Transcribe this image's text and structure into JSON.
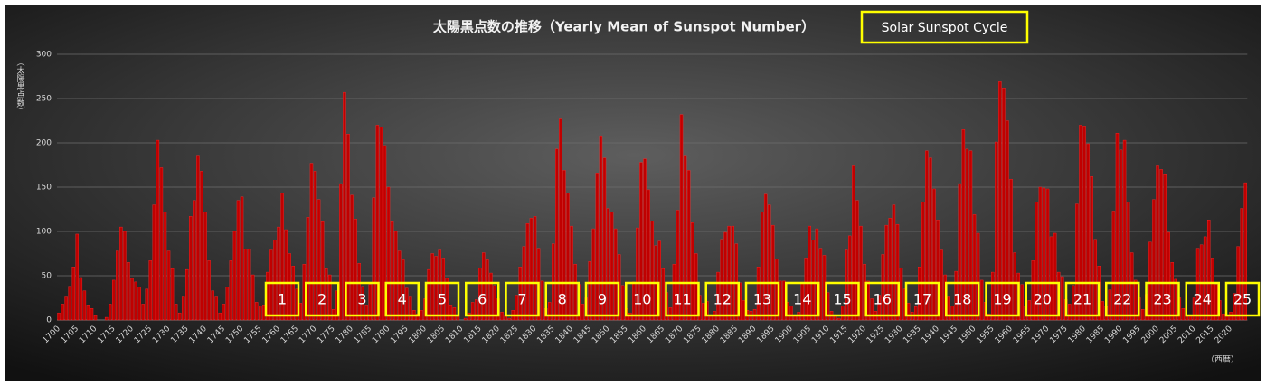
{
  "chart_data": {
    "type": "bar",
    "title": "太陽黒点数の推移（Yearly Mean of Sunspot Number）",
    "annotation": "Solar Sunspot Cycle",
    "y_label": "（太陽黒点数）",
    "x_label": "（西暦）",
    "cycles": [
      1,
      2,
      3,
      4,
      5,
      6,
      7,
      8,
      9,
      10,
      11,
      12,
      13,
      14,
      15,
      16,
      17,
      18,
      19,
      20,
      21,
      22,
      23,
      24,
      25
    ],
    "color": "#c00000",
    "grid": true,
    "ylim": [
      0,
      300
    ],
    "yticks": [
      0,
      50,
      100,
      150,
      200,
      250,
      300
    ],
    "categories": [
      "1700",
      null,
      null,
      null,
      null,
      "1705",
      null,
      null,
      null,
      null,
      "1710",
      null,
      null,
      null,
      null,
      "1715",
      null,
      null,
      null,
      null,
      "1720",
      null,
      null,
      null,
      null,
      "1725",
      null,
      null,
      null,
      null,
      "1730",
      null,
      null,
      null,
      null,
      "1735",
      null,
      null,
      null,
      null,
      "1740",
      null,
      null,
      null,
      null,
      "1745",
      null,
      null,
      null,
      null,
      "1750",
      null,
      null,
      null,
      null,
      "1755",
      null,
      null,
      null,
      null,
      "1760",
      null,
      null,
      null,
      null,
      "1765",
      null,
      null,
      null,
      null,
      "1770",
      null,
      null,
      null,
      null,
      "1775",
      null,
      null,
      null,
      null,
      "1780",
      null,
      null,
      null,
      null,
      "1785",
      null,
      null,
      null,
      null,
      "1790",
      null,
      null,
      null,
      null,
      "1795",
      null,
      null,
      null,
      null,
      "1800",
      null,
      null,
      null,
      null,
      "1805",
      null,
      null,
      null,
      null,
      "1810",
      null,
      null,
      null,
      null,
      "1815",
      null,
      null,
      null,
      null,
      "1820",
      null,
      null,
      null,
      null,
      "1825",
      null,
      null,
      null,
      null,
      "1830",
      null,
      null,
      null,
      null,
      "1835",
      null,
      null,
      null,
      null,
      "1840",
      null,
      null,
      null,
      null,
      "1845",
      null,
      null,
      null,
      null,
      "1850",
      null,
      null,
      null,
      null,
      "1855",
      null,
      null,
      null,
      null,
      "1860",
      null,
      null,
      null,
      null,
      "1865",
      null,
      null,
      null,
      null,
      "1870",
      null,
      null,
      null,
      null,
      "1875",
      null,
      null,
      null,
      null,
      "1880",
      null,
      null,
      null,
      null,
      "1885",
      null,
      null,
      null,
      null,
      "1890",
      null,
      null,
      null,
      null,
      "1895",
      null,
      null,
      null,
      null,
      "1900",
      null,
      null,
      null,
      null,
      "1905",
      null,
      null,
      null,
      null,
      "1910",
      null,
      null,
      null,
      null,
      "1915",
      null,
      null,
      null,
      null,
      "1920",
      null,
      null,
      null,
      null,
      "1925",
      null,
      null,
      null,
      null,
      "1930",
      null,
      null,
      null,
      null,
      "1935",
      null,
      null,
      null,
      null,
      "1940",
      null,
      null,
      null,
      null,
      "1945",
      null,
      null,
      null,
      null,
      "1950",
      null,
      null,
      null,
      null,
      "1955",
      null,
      null,
      null,
      null,
      "1960",
      null,
      null,
      null,
      null,
      "1965",
      null,
      null,
      null,
      null,
      "1970",
      null,
      null,
      null,
      null,
      "1975",
      null,
      null,
      null,
      null,
      "1980",
      null,
      null,
      null,
      null,
      "1985",
      null,
      null,
      null,
      null,
      "1990",
      null,
      null,
      null,
      null,
      "1995",
      null,
      null,
      null,
      null,
      "2000",
      null,
      null,
      null,
      null,
      "2005",
      null,
      null,
      null,
      null,
      "2010",
      null,
      null,
      null,
      null,
      "2015",
      null,
      null,
      null,
      null,
      "2020",
      null,
      null,
      null,
      null
    ],
    "values": [
      8,
      18,
      27,
      38,
      60,
      97,
      48,
      33,
      17,
      13,
      5,
      0,
      0,
      3,
      18,
      45,
      78,
      105,
      100,
      65,
      47,
      43,
      37,
      18,
      35,
      67,
      130,
      203,
      172,
      122,
      78,
      58,
      18,
      8,
      27,
      57,
      117,
      135,
      185,
      168,
      122,
      67,
      33,
      27,
      8,
      18,
      37,
      67,
      100,
      135,
      139,
      80,
      80,
      51,
      20,
      16,
      17,
      54,
      79,
      90,
      105,
      143,
      102,
      75,
      61,
      35,
      19,
      63,
      116,
      177,
      168,
      136,
      111,
      58,
      51,
      12,
      33,
      154,
      257,
      210,
      141,
      114,
      64,
      38,
      17,
      40,
      138,
      220,
      218,
      197,
      150,
      111,
      100,
      78,
      68,
      36,
      27,
      11,
      7,
      11,
      24,
      57,
      75,
      72,
      79,
      70,
      47,
      17,
      14,
      4,
      0,
      2,
      8,
      20,
      23,
      59,
      76,
      68,
      53,
      39,
      24,
      9,
      6,
      2,
      11,
      28,
      60,
      83,
      109,
      115,
      117,
      81,
      44,
      13,
      20,
      86,
      193,
      227,
      169,
      143,
      106,
      63,
      40,
      18,
      25,
      66,
      103,
      166,
      208,
      183,
      126,
      122,
      103,
      74,
      39,
      13,
      8,
      43,
      104,
      178,
      182,
      147,
      112,
      84,
      89,
      58,
      31,
      14,
      63,
      124,
      232,
      185,
      169,
      110,
      75,
      28,
      19,
      21,
      6,
      10,
      54,
      91,
      99,
      106,
      106,
      86,
      42,
      22,
      11,
      10,
      12,
      60,
      122,
      142,
      130,
      107,
      69,
      44,
      44,
      20,
      16,
      5,
      9,
      41,
      70,
      106,
      90,
      103,
      81,
      73,
      31,
      10,
      6,
      2,
      16,
      79,
      95,
      174,
      135,
      106,
      63,
      44,
      24,
      10,
      28,
      74,
      107,
      115,
      130,
      108,
      59,
      35,
      19,
      9,
      15,
      60,
      133,
      191,
      183,
      148,
      113,
      79,
      51,
      27,
      16,
      55,
      154,
      215,
      193,
      191,
      119,
      98,
      45,
      20,
      7,
      54,
      201,
      269,
      262,
      225,
      159,
      76,
      53,
      40,
      15,
      22,
      67,
      133,
      150,
      149,
      148,
      94,
      98,
      54,
      49,
      23,
      18,
      39,
      131,
      220,
      219,
      199,
      162,
      91,
      61,
      21,
      15,
      34,
      123,
      211,
      192,
      203,
      133,
      76,
      45,
      25,
      12,
      29,
      88,
      136,
      174,
      170,
      164,
      99,
      65,
      46,
      25,
      13,
      4,
      5,
      25,
      81,
      85,
      94,
      113,
      70,
      40,
      22,
      7,
      4,
      9,
      30,
      83,
      126,
      155
    ]
  }
}
